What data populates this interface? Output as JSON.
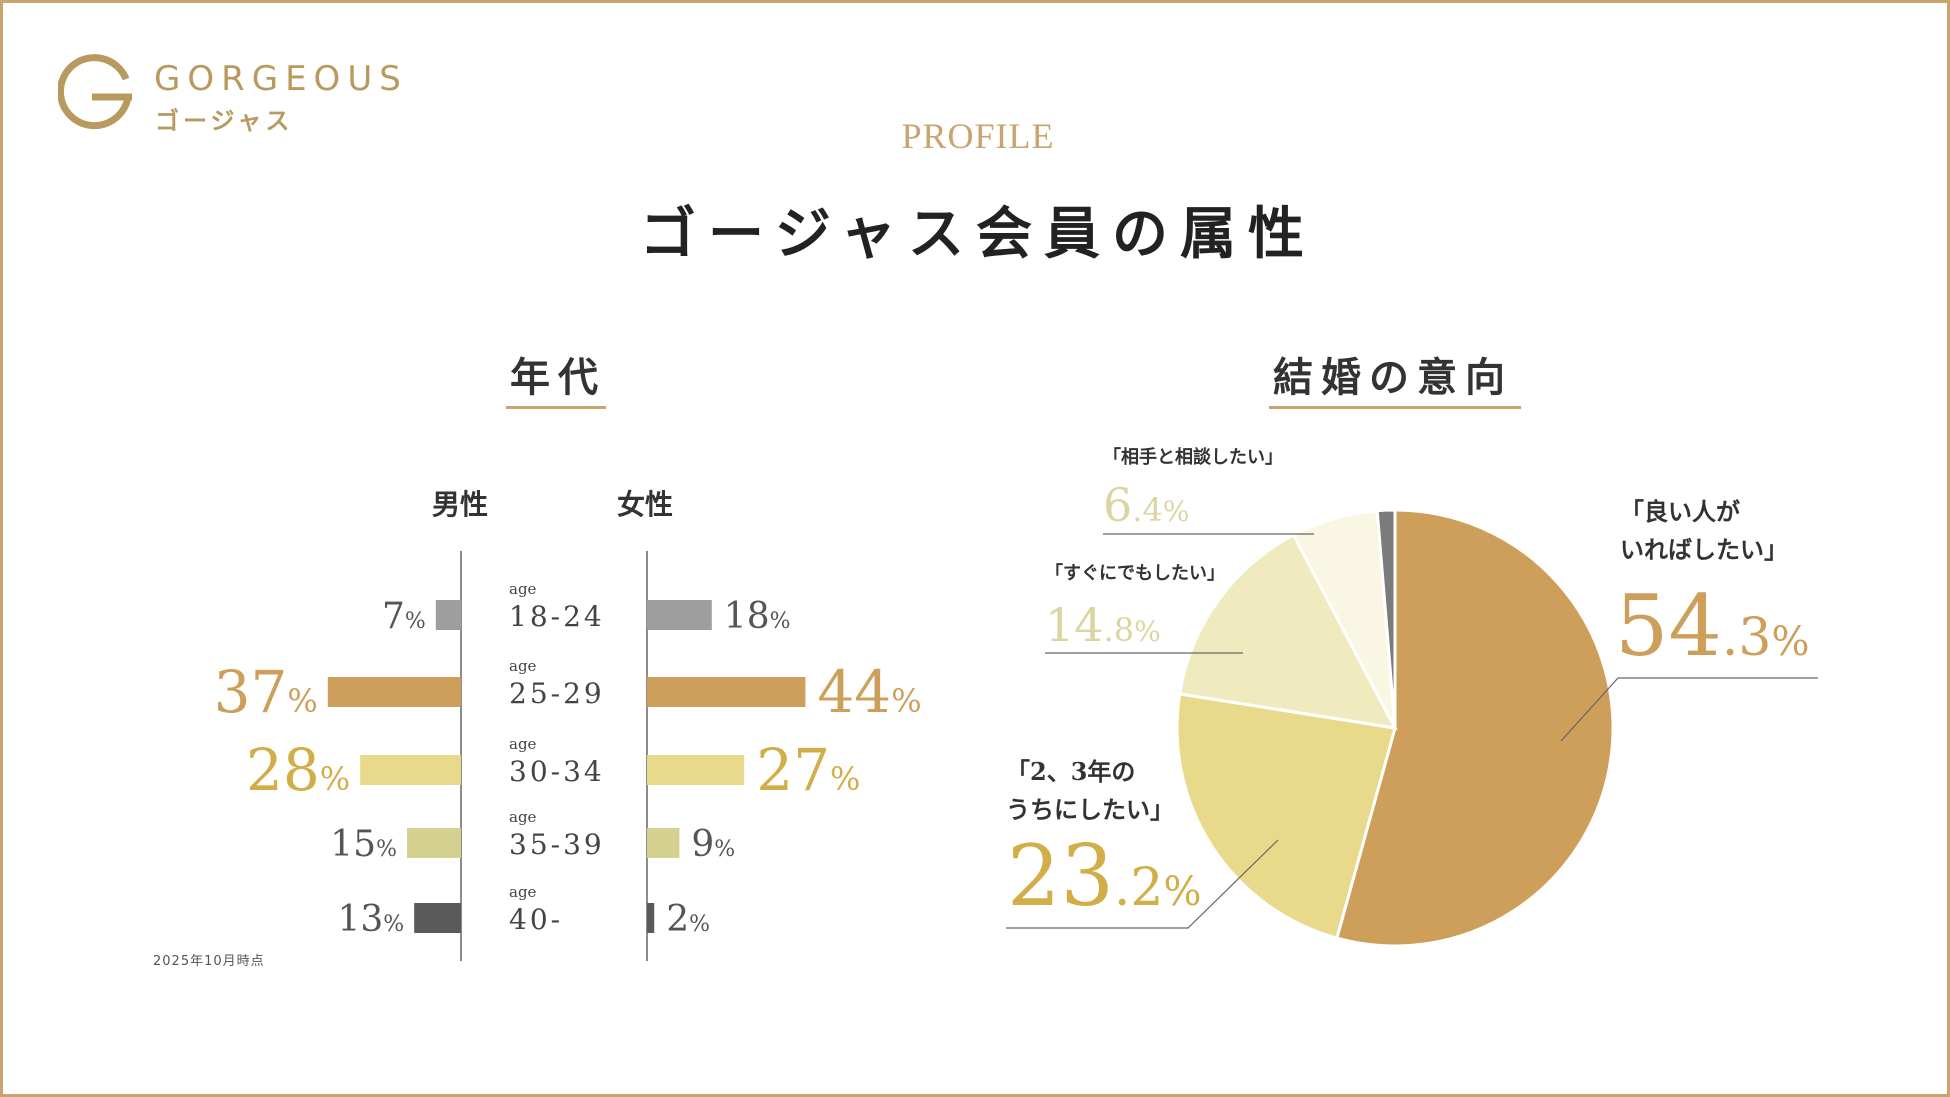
{
  "brand": {
    "name": "GORGEOUS",
    "kana": "ゴージャス"
  },
  "header": {
    "eyebrow": "PROFILE",
    "title": "ゴージャス会員の属性"
  },
  "footnote": "2025年10月時点",
  "colors": {
    "gold": "#c9a46e",
    "tan": "#cd9f5a",
    "yellow": "#e8da8a",
    "olive": "#d4d08f",
    "gray": "#9e9e9e",
    "dark": "#5a5a5a",
    "cream": "#f0ebbe",
    "ivory": "#f9f6e3"
  },
  "chart_data": [
    {
      "type": "bar",
      "title": "年代",
      "orientation": "horizontal-butterfly",
      "unit": "%",
      "age_prefix": "age",
      "categories": [
        "18-24",
        "25-29",
        "30-34",
        "35-39",
        "40-"
      ],
      "series": [
        {
          "name": "男性",
          "values": [
            7,
            37,
            28,
            15,
            13
          ]
        },
        {
          "name": "女性",
          "values": [
            18,
            44,
            27,
            9,
            2
          ]
        }
      ]
    },
    {
      "type": "pie",
      "title": "結婚の意向",
      "unit": "%",
      "slices": [
        {
          "label_lines": [
            "「良い人が",
            "いればしたい」"
          ],
          "value": 54.3,
          "int": "54",
          "dec": ".3"
        },
        {
          "label_lines": [
            "「2、3年の",
            "うちにしたい」"
          ],
          "value": 23.2,
          "int": "23",
          "dec": ".2"
        },
        {
          "label_lines": [
            "「すぐにでもしたい」"
          ],
          "value": 14.8,
          "int": "14",
          "dec": ".8"
        },
        {
          "label_lines": [
            "「相手と相談したい」"
          ],
          "value": 6.4,
          "int": "6",
          "dec": ".4"
        },
        {
          "label_lines": [],
          "value": 1.3,
          "int": "",
          "dec": ""
        }
      ]
    }
  ]
}
